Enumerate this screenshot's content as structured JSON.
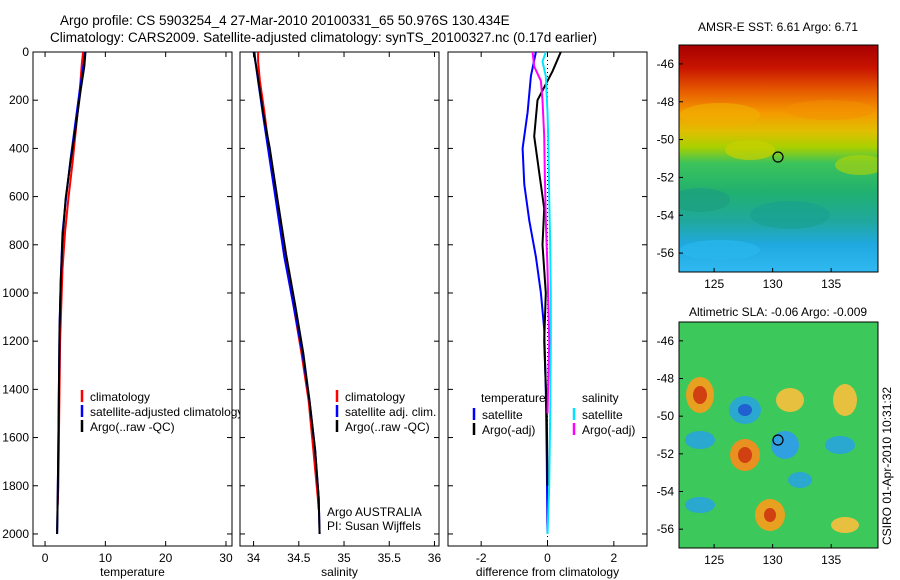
{
  "header": {
    "line1": "Argo profile: CS 5903254_4 27-Mar-2010 20100331_65 50.976S 130.434E",
    "line2": "Climatology: CARS2009. Satellite-adjusted climatology: synTS_20100327.nc (0.17d earlier)"
  },
  "footer_stamp": "CSIRO 01-Apr-2010 10:31:32",
  "colors": {
    "clim": "#ff0000",
    "sat": "#0000ff",
    "argo": "#000000",
    "sat_s": "#00e5ff",
    "argo_s": "#ff00ff",
    "dotted": "#000000"
  },
  "chart_data": [
    {
      "type": "line",
      "xlabel": "temperature",
      "ylabel": "",
      "xlim": [
        -2,
        31
      ],
      "ylim": [
        2050,
        0
      ],
      "xticks": [
        0,
        10,
        20,
        30
      ],
      "yticks": [
        0,
        200,
        400,
        600,
        800,
        1000,
        1200,
        1400,
        1600,
        1800,
        2000
      ],
      "legend": [
        "climatology",
        "satellite-adjusted climatology",
        "Argo(..raw -QC)"
      ],
      "series": [
        {
          "name": "climatology",
          "color": "clim",
          "x": [
            6.3,
            6.1,
            5.8,
            5.2,
            4.6,
            3.9,
            3.3,
            2.9,
            2.7,
            2.5,
            2.4,
            2.3,
            2.2,
            2.1
          ],
          "y": [
            0,
            50,
            150,
            300,
            450,
            600,
            750,
            900,
            1050,
            1200,
            1400,
            1600,
            1800,
            1880
          ]
        },
        {
          "name": "satellite-adjusted climatology",
          "color": "sat",
          "x": [
            6.6,
            6.4,
            5.8,
            5.0,
            4.2,
            3.5,
            2.9,
            2.6,
            2.4,
            2.3,
            2.2,
            2.1,
            2.0
          ],
          "y": [
            0,
            50,
            150,
            300,
            450,
            600,
            750,
            950,
            1150,
            1400,
            1650,
            1850,
            2000
          ]
        },
        {
          "name": "Argo(..raw -QC)",
          "color": "argo",
          "x": [
            6.7,
            6.5,
            5.9,
            5.1,
            4.2,
            3.4,
            2.9,
            2.6,
            2.4,
            2.3,
            2.2,
            2.1,
            2.0
          ],
          "y": [
            0,
            60,
            160,
            310,
            460,
            610,
            780,
            960,
            1160,
            1400,
            1650,
            1850,
            2000
          ]
        }
      ]
    },
    {
      "type": "line",
      "xlabel": "salinity",
      "ylabel": "",
      "xlim": [
        33.85,
        36.05
      ],
      "ylim": [
        2050,
        0
      ],
      "xticks": [
        34,
        34.5,
        35,
        35.5,
        36
      ],
      "xticklabels": [
        "34",
        "34.5",
        "35",
        "35.5",
        "36"
      ],
      "legend": [
        "climatology",
        "satellite adj. clim.",
        "Argo(..raw -QC)"
      ],
      "annotation": [
        "Argo AUSTRALIA",
        "PI: Susan Wijffels"
      ],
      "series": [
        {
          "name": "climatology",
          "color": "clim",
          "x": [
            34.05,
            34.05,
            34.07,
            34.12,
            34.17,
            34.25,
            34.35,
            34.44,
            34.53,
            34.61,
            34.66,
            34.71,
            34.72
          ],
          "y": [
            0,
            40,
            120,
            250,
            400,
            600,
            850,
            1050,
            1250,
            1450,
            1650,
            1850,
            1900
          ]
        },
        {
          "name": "satellite adj. clim.",
          "color": "sat",
          "x": [
            34.01,
            34.02,
            34.05,
            34.1,
            34.16,
            34.24,
            34.34,
            34.44,
            34.54,
            34.62,
            34.68,
            34.72,
            34.73
          ],
          "y": [
            0,
            40,
            120,
            250,
            400,
            600,
            850,
            1050,
            1250,
            1450,
            1650,
            1850,
            2000
          ]
        },
        {
          "name": "Argo(..raw -QC)",
          "color": "argo",
          "x": [
            34.0,
            34.03,
            34.07,
            34.11,
            34.18,
            34.26,
            34.36,
            34.46,
            34.55,
            34.62,
            34.68,
            34.72,
            34.73
          ],
          "y": [
            0,
            60,
            160,
            260,
            400,
            600,
            840,
            1050,
            1250,
            1450,
            1650,
            1850,
            2000
          ]
        }
      ]
    },
    {
      "type": "line",
      "xlabel": "difference from climatology",
      "ylabel": "",
      "xlim": [
        -3,
        3
      ],
      "ylim": [
        2050,
        0
      ],
      "xticks": [
        -2,
        0,
        2
      ],
      "legend_titles": [
        "temperature",
        "salinity"
      ],
      "legend": [
        "satellite",
        "Argo(-adj)",
        "satellite",
        "Argo(-adj)"
      ],
      "series": [
        {
          "name": "satellite",
          "color": "sat",
          "x": [
            -0.35,
            -0.5,
            -0.6,
            -0.75,
            -0.7,
            -0.55,
            -0.35,
            -0.2,
            -0.1,
            -0.05,
            -0.02,
            0.0
          ],
          "y": [
            0,
            100,
            250,
            400,
            550,
            700,
            850,
            1000,
            1150,
            1400,
            1700,
            2000
          ]
        },
        {
          "name": "Argo(-adj)",
          "color": "argo",
          "x": [
            0.4,
            0.15,
            -0.3,
            -0.4,
            -0.25,
            -0.1,
            -0.15,
            -0.05,
            -0.1,
            -0.02,
            0.0
          ],
          "y": [
            0,
            80,
            200,
            350,
            500,
            650,
            800,
            1000,
            1200,
            1500,
            1800
          ]
        },
        {
          "name": "satellite",
          "color": "sat_s",
          "x": [
            -0.05,
            -0.15,
            -0.05,
            0.0,
            0.03,
            0.05,
            0.08,
            0.1,
            0.1,
            0.08,
            0.05,
            0.0
          ],
          "y": [
            0,
            40,
            100,
            250,
            400,
            600,
            800,
            1000,
            1200,
            1500,
            1800,
            2000
          ]
        },
        {
          "name": "Argo(-adj)",
          "color": "argo_s",
          "x": [
            -0.45,
            -0.4,
            -0.2,
            -0.15,
            -0.1,
            -0.08,
            -0.05,
            0.0,
            0.05,
            0.0
          ],
          "y": [
            0,
            60,
            120,
            200,
            350,
            500,
            700,
            900,
            1200,
            1500
          ]
        }
      ]
    },
    {
      "type": "heatmap",
      "title": "AMSR-E SST: 6.61 Argo: 6.71",
      "xlim": [
        122,
        139
      ],
      "ylim": [
        -57,
        -45
      ],
      "xticks": [
        125,
        130,
        135
      ],
      "yticks": [
        -46,
        -48,
        -50,
        -52,
        -54,
        -56
      ],
      "argo_location": {
        "lon": 130.434,
        "lat": -50.976
      }
    },
    {
      "type": "heatmap",
      "title": "Altimetric SLA: -0.06 Argo: -0.009",
      "xlim": [
        122,
        139
      ],
      "ylim": [
        -57,
        -45
      ],
      "xticks": [
        125,
        130,
        135
      ],
      "yticks": [
        -46,
        -48,
        -50,
        -52,
        -54,
        -56
      ],
      "argo_location": {
        "lon": 130.434,
        "lat": -50.976
      }
    }
  ]
}
